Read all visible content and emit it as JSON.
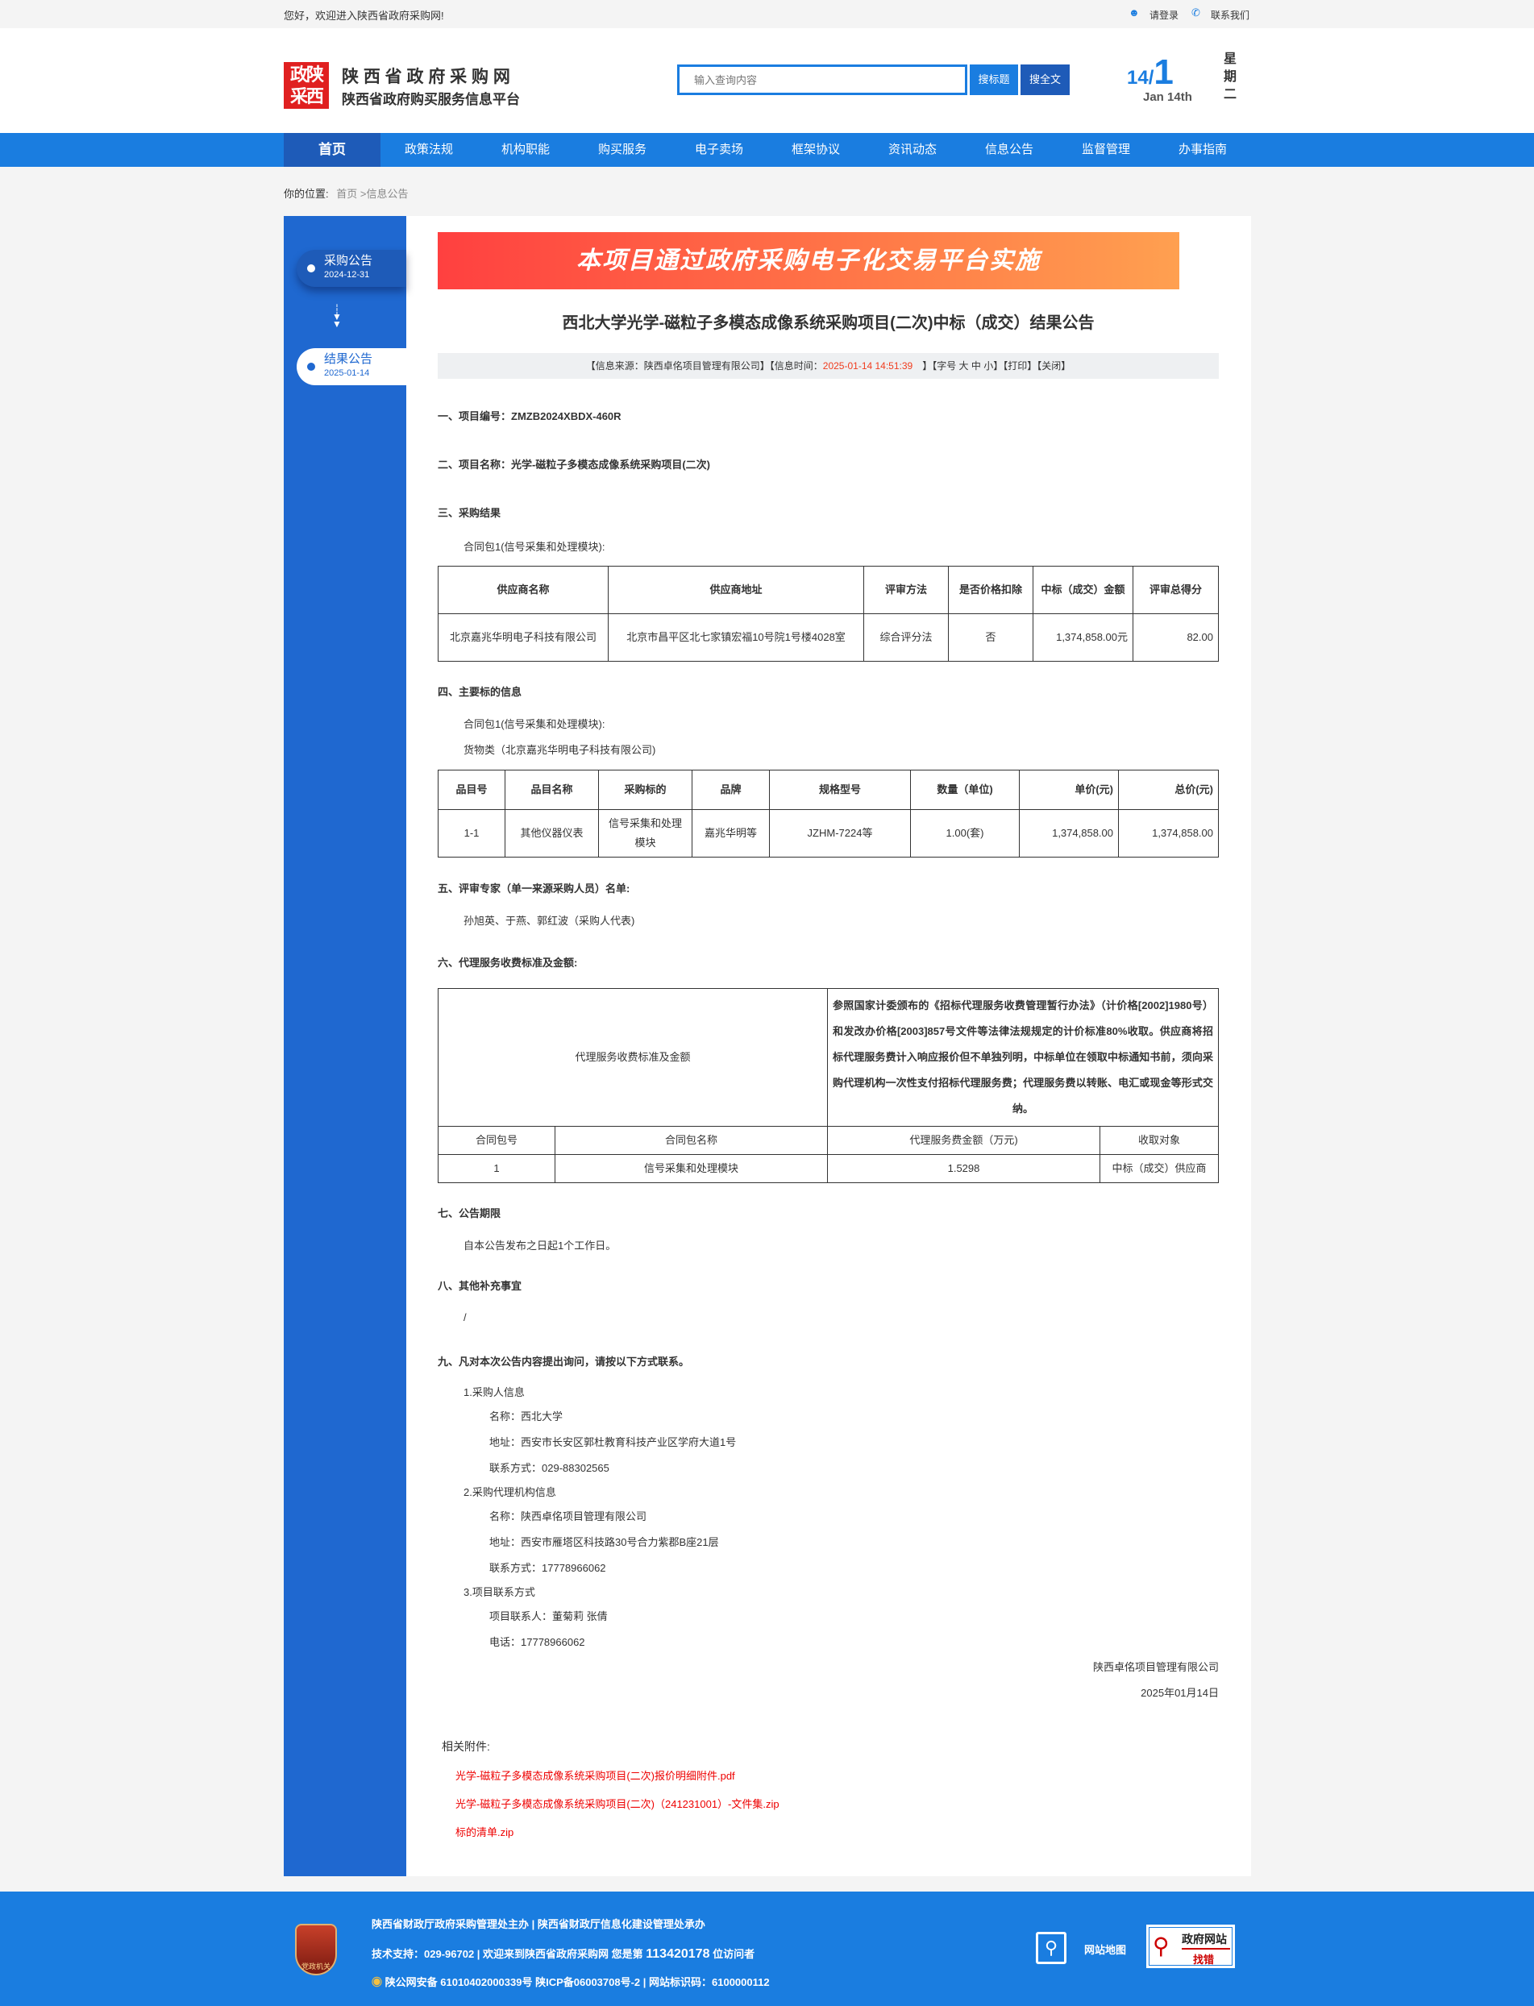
{
  "topbar": {
    "welcome": "您好，欢迎进入陕西省政府采购网!",
    "login": "请登录",
    "contact": "联系我们"
  },
  "header": {
    "logo_text": "政陕采西",
    "site_name": "陕 西 省 政 府 采 购 网",
    "site_subtitle": "陕西省政府购买服务信息平台",
    "search_placeholder": "输入查询内容",
    "search_title_btn": "搜标题",
    "search_full_btn": "搜全文",
    "date_day": "14",
    "date_month": "1",
    "date_en": "Jan 14th",
    "weekday": "星期二"
  },
  "nav": {
    "items": [
      "首页",
      "政策法规",
      "机构职能",
      "购买服务",
      "电子卖场",
      "框架协议",
      "资讯动态",
      "信息公告",
      "监督管理",
      "办事指南"
    ],
    "active": 0
  },
  "breadcrumb": {
    "label": "你的位置:",
    "path": "首页 >信息公告"
  },
  "sidebar": {
    "items": [
      {
        "label": "采购公告",
        "date": "2024-12-31"
      },
      {
        "label": "结果公告",
        "date": "2025-01-14",
        "active": true
      }
    ]
  },
  "banner": {
    "text": "本项目通过政府采购电子化交易平台实施"
  },
  "article": {
    "title": "西北大学光学-磁粒子多模态成像系统采购项目(二次)中标（成交）结果公告",
    "info": {
      "source_prefix": "【信息来源：陕西卓佲项目管理有限公司】【信息时间：",
      "time": "2025-01-14 14:51:39",
      "suffix": "】【字号 大 中 小】【打印】【关闭】"
    },
    "s1": "一、项目编号：ZMZB2024XBDX-460R",
    "s2": "二、项目名称：光学-磁粒子多模态成像系统采购项目(二次)",
    "s3": "三、采购结果",
    "s3_pkg": "合同包1(信号采集和处理模块):",
    "t1": {
      "headers": [
        "供应商名称",
        "供应商地址",
        "评审方法",
        "是否价格扣除",
        "中标（成交）金额",
        "评审总得分"
      ],
      "row": [
        "北京嘉兆华明电子科技有限公司",
        "北京市昌平区北七家镇宏福10号院1号楼4028室",
        "综合评分法",
        "否",
        "1,374,858.00元",
        "82.00"
      ]
    },
    "s4": "四、主要标的信息",
    "s4_pkg": "合同包1(信号采集和处理模块):",
    "s4_type": "货物类（北京嘉兆华明电子科技有限公司)",
    "t2": {
      "headers": [
        "品目号",
        "品目名称",
        "采购标的",
        "品牌",
        "规格型号",
        "数量（单位)",
        "单价(元)",
        "总价(元)"
      ],
      "row": [
        "1-1",
        "其他仪器仪表",
        "信号采集和处理模块",
        "嘉兆华明等",
        "JZHM-7224等",
        "1.00(套)",
        "1,374,858.00",
        "1,374,858.00"
      ]
    },
    "s5": "五、评审专家（单一来源采购人员）名单:",
    "s5_text": "孙旭英、于燕、郭红波（采购人代表)",
    "s6": "六、代理服务收费标准及金额:",
    "t3": {
      "label": "代理服务收费标准及金额",
      "desc": "参照国家计委颁布的《招标代理服务收费管理暂行办法》（计价格[2002]1980号）和发改办价格[2003]857号文件等法律法规规定的计价标准80%收取。供应商将招标代理服务费计入响应报价但不单独列明，中标单位在领取中标通知书前，须向采购代理机构一次性支付招标代理服务费；代理服务费以转账、电汇或现金等形式交纳。",
      "headers": [
        "合同包号",
        "合同包名称",
        "代理服务费金额（万元)",
        "收取对象"
      ],
      "row": [
        "1",
        "信号采集和处理模块",
        "1.5298",
        "中标（成交）供应商"
      ]
    },
    "s7": "七、公告期限",
    "s7_text": "自本公告发布之日起1个工作日。",
    "s8": "八、其他补充事宜",
    "s8_text": "/",
    "s9": "九、凡对本次公告内容提出询问，请按以下方式联系。",
    "contacts": [
      {
        "title": "1.采购人信息",
        "lines": [
          "名称：西北大学",
          "地址：西安市长安区郭杜教育科技产业区学府大道1号",
          "联系方式：029-88302565"
        ]
      },
      {
        "title": "2.采购代理机构信息",
        "lines": [
          "名称：陕西卓佲项目管理有限公司",
          "地址：西安市雁塔区科技路30号合力紫郡B座21层",
          "联系方式：17778966062"
        ]
      },
      {
        "title": "3.项目联系方式",
        "lines": [
          "项目联系人：董菊莉 张倩",
          "电话：17778966062"
        ]
      }
    ],
    "signer": "陕西卓佲项目管理有限公司",
    "sign_date": "2025年01月14日",
    "attachments_label": "相关附件:",
    "attachments": [
      "光学-磁粒子多模态成像系统采购项目(二次)报价明细附件.pdf",
      "光学-磁粒子多模态成像系统采购项目(二次)（241231001）-文件集.zip",
      "标的清单.zip"
    ]
  },
  "footer": {
    "line1": "陕西省财政厅政府采购管理处主办 | 陕西省财政厅信息化建设管理处承办",
    "line2_prefix": "技术支持：029-96702 | 欢迎来到陕西省政府采购网 您是第 ",
    "visitors": "113420178",
    "line2_suffix": " 位访问者",
    "line3": "陕公网安备 61010402000339号   陕ICP备06003708号-2  |  网站标识码：6100000112",
    "sitemap": "网站地图",
    "badge_top": "政府网站",
    "badge_bottom": "找错",
    "emblem_text": "党政机关"
  },
  "colors": {
    "brand_blue": "#1a7de0",
    "nav_active": "#1e5bb8",
    "sidebar": "#1f68d0",
    "highlight_red": "#e00"
  }
}
